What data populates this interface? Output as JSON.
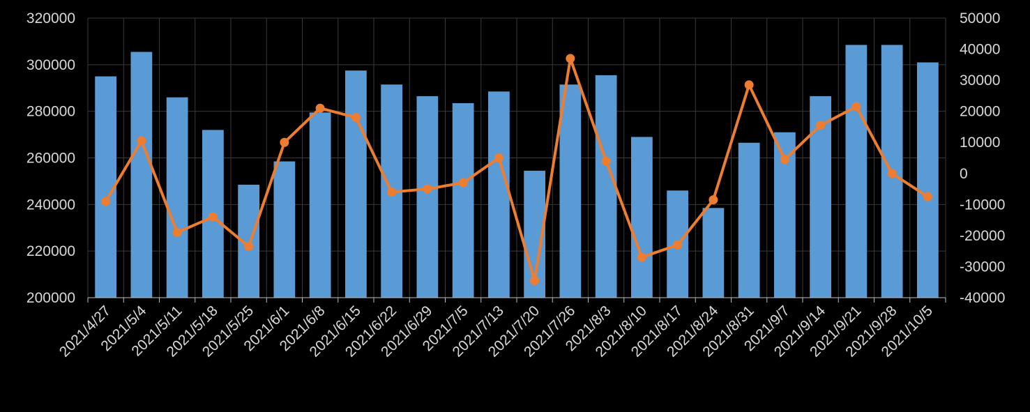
{
  "chart_data": {
    "type": "bar",
    "combo": "bar + line on secondary axis",
    "categories": [
      "2021/4/27",
      "2021/5/4",
      "2021/5/11",
      "2021/5/18",
      "2021/5/25",
      "2021/6/1",
      "2021/6/8",
      "2021/6/15",
      "2021/6/22",
      "2021/6/29",
      "2021/7/5",
      "2021/7/13",
      "2021/7/20",
      "2021/7/26",
      "2021/8/3",
      "2021/8/10",
      "2021/8/17",
      "2021/8/24",
      "2021/8/31",
      "2021/9/7",
      "2021/9/14",
      "2021/9/21",
      "2021/9/28",
      "2021/10/5"
    ],
    "series": [
      {
        "type": "bar",
        "axis": "left",
        "color": "#5b9bd5",
        "values": [
          295000,
          305500,
          286000,
          272000,
          248500,
          258500,
          279500,
          297500,
          291500,
          286500,
          283500,
          288500,
          254500,
          291500,
          295500,
          269000,
          246000,
          238500,
          266500,
          271000,
          286500,
          308500,
          308500,
          301000
        ]
      },
      {
        "type": "line",
        "axis": "right",
        "color": "#ed7d31",
        "values": [
          -9000,
          10500,
          -19000,
          -14000,
          -23500,
          10000,
          21000,
          18000,
          -6000,
          -5000,
          -3000,
          5000,
          -34500,
          37000,
          4000,
          -27000,
          -23000,
          -8500,
          28500,
          4500,
          15500,
          21500,
          0,
          -7500
        ]
      }
    ],
    "left_axis": {
      "min": 200000,
      "max": 320000,
      "step": 20000,
      "ticks": [
        "200000",
        "220000",
        "240000",
        "260000",
        "280000",
        "300000",
        "320000"
      ]
    },
    "right_axis": {
      "min": -40000,
      "max": 50000,
      "step": 10000,
      "ticks": [
        "-40000",
        "-30000",
        "-20000",
        "-10000",
        "0",
        "10000",
        "20000",
        "30000",
        "40000",
        "50000"
      ]
    },
    "grid": true,
    "legend": "none",
    "background": "#000000",
    "title": "",
    "xlabel": "",
    "ylabel": ""
  }
}
